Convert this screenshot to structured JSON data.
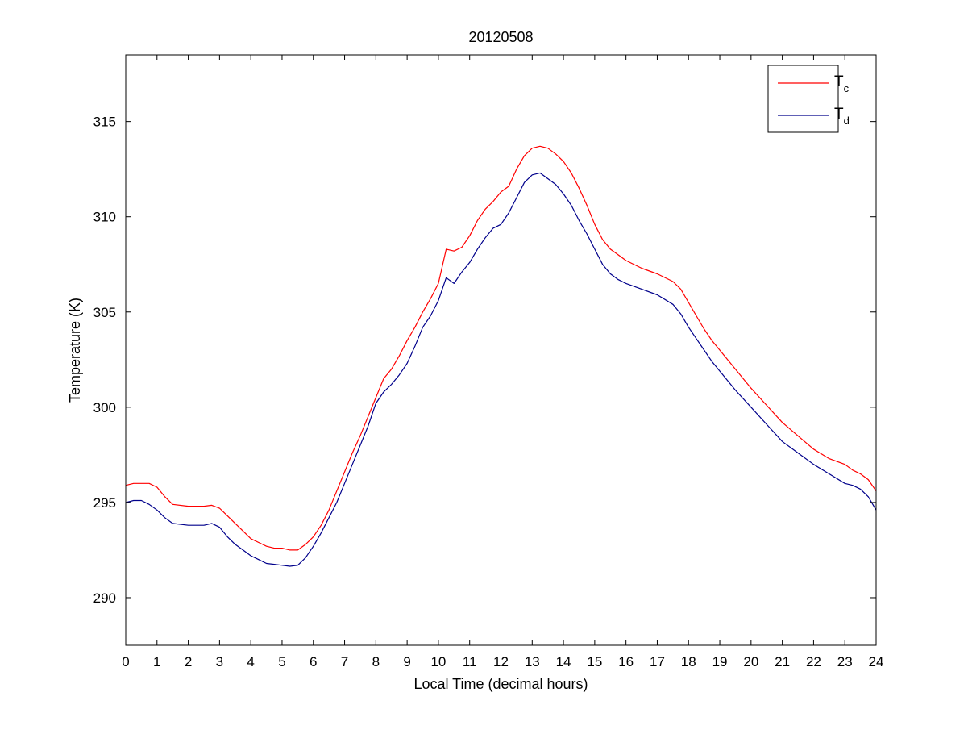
{
  "chart_data": {
    "type": "line",
    "title": "20120508",
    "xlabel": "Local Time (decimal hours)",
    "ylabel": "Temperature (K)",
    "xlim": [
      0,
      24
    ],
    "ylim": [
      287.5,
      318.5
    ],
    "xticks": [
      0,
      1,
      2,
      3,
      4,
      5,
      6,
      7,
      8,
      9,
      10,
      11,
      12,
      13,
      14,
      15,
      16,
      17,
      18,
      19,
      20,
      21,
      22,
      23,
      24
    ],
    "yticks": [
      290,
      295,
      300,
      305,
      310,
      315
    ],
    "grid": false,
    "legend": {
      "location": "top-right",
      "entries": [
        {
          "base": "T",
          "sub": "c",
          "color": "#ff0000"
        },
        {
          "base": "T",
          "sub": "d",
          "color": "#00008b"
        }
      ]
    },
    "series": [
      {
        "color": "#ff0000",
        "x": [
          0,
          0.25,
          0.5,
          0.75,
          1.0,
          1.25,
          1.5,
          2.0,
          2.5,
          2.75,
          3.0,
          3.25,
          3.5,
          3.75,
          4.0,
          4.25,
          4.5,
          4.75,
          5.0,
          5.25,
          5.5,
          5.75,
          6.0,
          6.25,
          6.5,
          6.75,
          7.0,
          7.25,
          7.5,
          7.75,
          8.0,
          8.25,
          8.5,
          8.75,
          9.0,
          9.25,
          9.5,
          9.75,
          10.0,
          10.25,
          10.5,
          10.75,
          11.0,
          11.25,
          11.5,
          11.75,
          12.0,
          12.25,
          12.5,
          12.75,
          13.0,
          13.25,
          13.5,
          13.75,
          14.0,
          14.25,
          14.5,
          14.75,
          15.0,
          15.25,
          15.5,
          15.75,
          16.0,
          16.5,
          17.0,
          17.5,
          17.75,
          18.0,
          18.25,
          18.5,
          18.75,
          19.0,
          19.5,
          20.0,
          20.5,
          21.0,
          21.5,
          22.0,
          22.5,
          23.0,
          23.25,
          23.5,
          23.75,
          24.0
        ],
        "y": [
          295.9,
          296.0,
          296.0,
          296.0,
          295.8,
          295.3,
          294.9,
          294.8,
          294.8,
          294.85,
          294.7,
          294.3,
          293.9,
          293.5,
          293.1,
          292.9,
          292.7,
          292.6,
          292.6,
          292.5,
          292.5,
          292.8,
          293.2,
          293.8,
          294.6,
          295.6,
          296.6,
          297.6,
          298.5,
          299.5,
          300.5,
          301.5,
          302.0,
          302.7,
          303.5,
          304.2,
          305.0,
          305.7,
          306.5,
          308.3,
          308.2,
          308.4,
          309.0,
          309.8,
          310.4,
          310.8,
          311.3,
          311.6,
          312.5,
          313.2,
          313.6,
          313.7,
          313.6,
          313.3,
          312.9,
          312.3,
          311.5,
          310.6,
          309.6,
          308.8,
          308.3,
          308.0,
          307.7,
          307.3,
          307.0,
          306.6,
          306.2,
          305.5,
          304.8,
          304.1,
          303.5,
          303.0,
          302.0,
          301.0,
          300.1,
          299.2,
          298.5,
          297.8,
          297.3,
          297.0,
          296.7,
          296.5,
          296.2,
          295.6
        ]
      },
      {
        "color": "#00008b",
        "x": [
          0,
          0.25,
          0.5,
          0.75,
          1.0,
          1.25,
          1.5,
          2.0,
          2.5,
          2.75,
          3.0,
          3.25,
          3.5,
          3.75,
          4.0,
          4.25,
          4.5,
          4.75,
          5.0,
          5.25,
          5.5,
          5.75,
          6.0,
          6.25,
          6.5,
          6.75,
          7.0,
          7.25,
          7.5,
          7.75,
          8.0,
          8.25,
          8.5,
          8.75,
          9.0,
          9.25,
          9.5,
          9.75,
          10.0,
          10.25,
          10.5,
          10.75,
          11.0,
          11.25,
          11.5,
          11.75,
          12.0,
          12.25,
          12.5,
          12.75,
          13.0,
          13.25,
          13.5,
          13.75,
          14.0,
          14.25,
          14.5,
          14.75,
          15.0,
          15.25,
          15.5,
          15.75,
          16.0,
          16.5,
          17.0,
          17.5,
          17.75,
          18.0,
          18.25,
          18.5,
          18.75,
          19.0,
          19.5,
          20.0,
          20.5,
          21.0,
          21.5,
          22.0,
          22.5,
          23.0,
          23.25,
          23.5,
          23.75,
          24.0
        ],
        "y": [
          295.0,
          295.1,
          295.1,
          294.9,
          294.6,
          294.2,
          293.9,
          293.8,
          293.8,
          293.9,
          293.7,
          293.2,
          292.8,
          292.5,
          292.2,
          292.0,
          291.8,
          291.75,
          291.7,
          291.65,
          291.7,
          292.1,
          292.7,
          293.4,
          294.2,
          295.0,
          296.0,
          297.0,
          298.0,
          299.0,
          300.2,
          300.8,
          301.2,
          301.7,
          302.3,
          303.2,
          304.2,
          304.8,
          305.6,
          306.8,
          306.5,
          307.1,
          307.6,
          308.3,
          308.9,
          309.4,
          309.6,
          310.2,
          311.0,
          311.8,
          312.2,
          312.3,
          312.0,
          311.7,
          311.2,
          310.6,
          309.8,
          309.1,
          308.3,
          307.5,
          307.0,
          306.7,
          306.5,
          306.2,
          305.9,
          305.4,
          304.9,
          304.2,
          303.6,
          303.0,
          302.4,
          301.9,
          300.9,
          300.0,
          299.1,
          298.2,
          297.6,
          297.0,
          296.5,
          296.0,
          295.9,
          295.7,
          295.3,
          294.6
        ]
      }
    ]
  }
}
